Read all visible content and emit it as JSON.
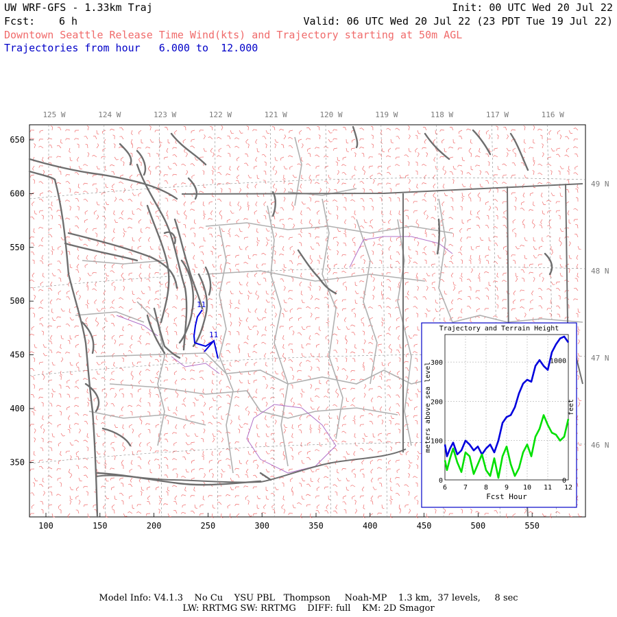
{
  "header": {
    "model": "UW WRF-GFS - 1.33km Traj",
    "fcst_label": "Fcst:",
    "fcst_value": "6 h",
    "init": "Init: 00 UTC Wed 20 Jul 22",
    "valid": "Valid: 06 UTC Wed 20 Jul 22 (23 PDT Tue 19 Jul 22)",
    "product": "Downtown Seattle Release Time Wind(kts) and Trajectory starting at 50m AGL",
    "traj_prefix": "Trajectories from hour",
    "traj_start": "6.000",
    "traj_to": "to",
    "traj_end": "12.000"
  },
  "map": {
    "x_ticks": [
      "100",
      "150",
      "200",
      "250",
      "300",
      "350",
      "400",
      "450",
      "500",
      "550"
    ],
    "y_ticks": [
      "650",
      "600",
      "550",
      "500",
      "450",
      "400",
      "350"
    ],
    "lon_labels": [
      "125 W",
      "124 W",
      "123 W",
      "122 W",
      "121 W",
      "120 W",
      "119 W",
      "118 W",
      "117 W",
      "116 W"
    ],
    "lat_labels": [
      "49 N",
      "48 N",
      "47 N",
      "46 N"
    ],
    "trajectory_markers": [
      "11",
      "11"
    ],
    "colors": {
      "coast": "#6e6e6e",
      "barbs": "#f06a6a",
      "trajectory": "#0000e0",
      "county": "#b0b0b0",
      "admin": "#b070c8"
    }
  },
  "inset": {
    "title": "Trajectory and Terrain Height",
    "xlabel": "Fcst Hour",
    "ylabel_left": "meters above sea level",
    "ylabel_right": "feet",
    "x_ticks": [
      "6",
      "7",
      "8",
      "9",
      "10",
      "11",
      "12"
    ],
    "y_ticks_left": [
      "0",
      "100",
      "200",
      "300"
    ],
    "y_ticks_right": [
      "0",
      "1000"
    ]
  },
  "chart_data": {
    "type": "line",
    "xlim": [
      6,
      12
    ],
    "ylim": [
      0,
      370
    ],
    "series": [
      {
        "color": "#0000dd",
        "x": [
          6,
          6.1,
          6.25,
          6.4,
          6.6,
          6.8,
          7,
          7.2,
          7.4,
          7.6,
          7.8,
          8,
          8.2,
          8.4,
          8.6,
          8.8,
          9,
          9.2,
          9.4,
          9.6,
          9.8,
          10,
          10.2,
          10.4,
          10.6,
          10.8,
          11,
          11.2,
          11.4,
          11.6,
          11.8,
          12
        ],
        "y": [
          90,
          60,
          80,
          95,
          65,
          75,
          100,
          90,
          75,
          85,
          65,
          80,
          90,
          70,
          100,
          145,
          160,
          165,
          185,
          220,
          245,
          255,
          250,
          290,
          305,
          290,
          280,
          325,
          345,
          360,
          365,
          350
        ]
      },
      {
        "color": "#00e000",
        "x": [
          6,
          6.1,
          6.25,
          6.4,
          6.6,
          6.8,
          7,
          7.2,
          7.4,
          7.6,
          7.8,
          8,
          8.2,
          8.4,
          8.6,
          8.8,
          9,
          9.2,
          9.4,
          9.6,
          9.8,
          10,
          10.2,
          10.4,
          10.6,
          10.8,
          11,
          11.2,
          11.4,
          11.6,
          11.8,
          12
        ],
        "y": [
          50,
          25,
          55,
          80,
          45,
          20,
          70,
          60,
          15,
          40,
          65,
          25,
          10,
          55,
          5,
          60,
          85,
          40,
          10,
          30,
          70,
          90,
          60,
          110,
          130,
          165,
          140,
          120,
          115,
          100,
          110,
          155
        ]
      }
    ]
  },
  "footer": {
    "line1": "Model Info: V4.1.3    No Cu    YSU PBL   Thompson     Noah-MP    1.3 km,  37 levels,     8 sec",
    "line2": "LW: RRTMG SW: RRTMG    DIFF: full    KM: 2D Smagor"
  }
}
